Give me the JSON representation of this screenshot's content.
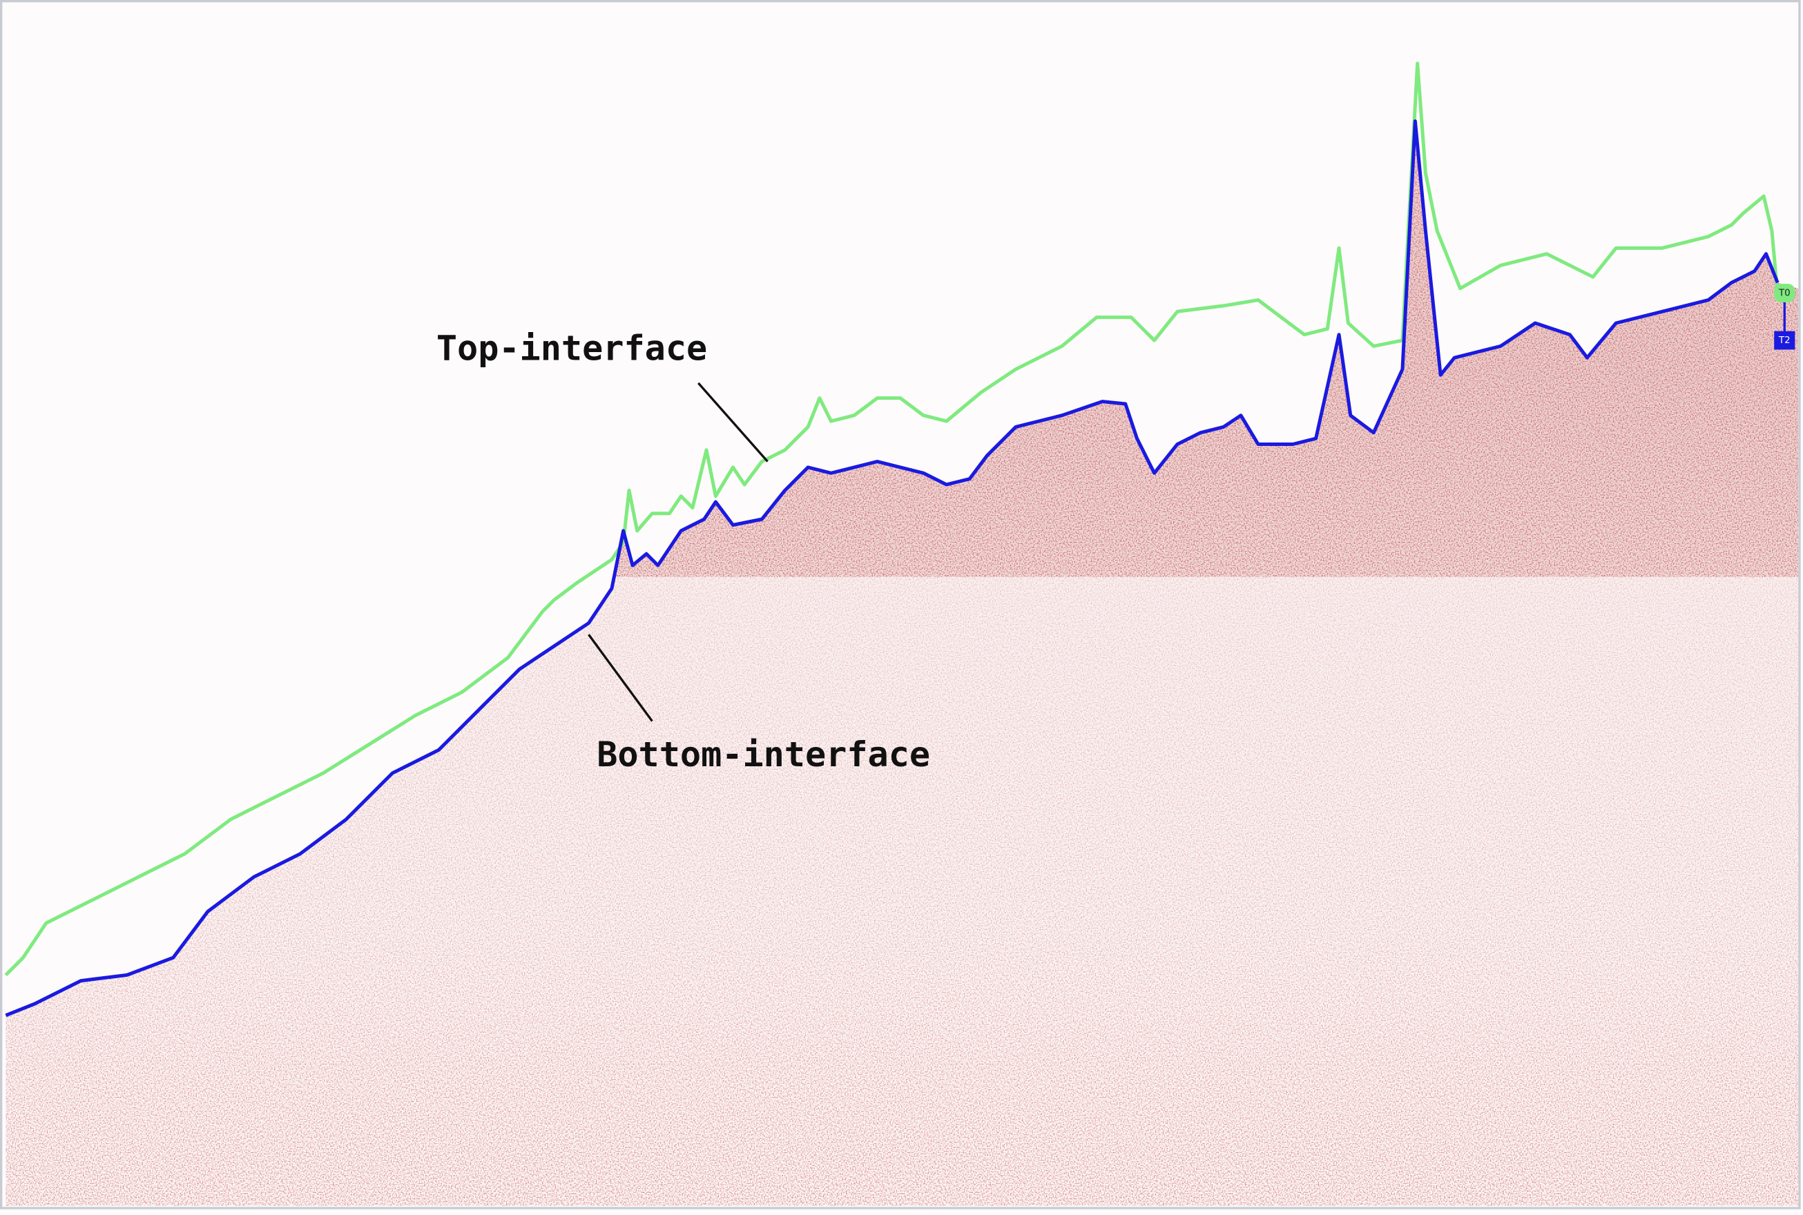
{
  "labels": {
    "top": "Top-interface",
    "bottom": "Bottom-interface"
  },
  "markers": {
    "top": "T0",
    "bottom": "T2"
  }
}
